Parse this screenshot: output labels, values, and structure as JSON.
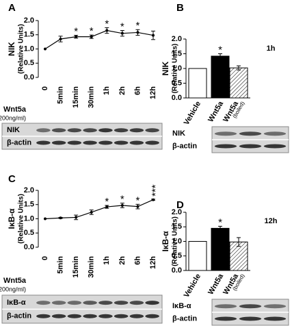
{
  "chart_data": [
    {
      "type": "line",
      "panel": "A",
      "y_label": [
        "NIK",
        "(Relative Units)"
      ],
      "treatment": [
        "Wnt5a",
        "(200ng/ml)"
      ],
      "categories": [
        "0",
        "5min",
        "15min",
        "30min",
        "1h",
        "2h",
        "6h",
        "12h"
      ],
      "values": [
        1.0,
        1.35,
        1.43,
        1.43,
        1.65,
        1.55,
        1.58,
        1.48
      ],
      "errors": [
        0,
        0.1,
        0.05,
        0.06,
        0.1,
        0.1,
        0.1,
        0.15
      ],
      "significance": [
        null,
        null,
        "*",
        "*",
        "*",
        "*",
        "*",
        null
      ],
      "color": "#000000",
      "ylim": [
        0,
        2
      ],
      "yticks": [
        {
          "value": 0,
          "label": "0.0"
        },
        0.5,
        {
          "value": 1,
          "label": "1.0"
        },
        1.5,
        {
          "value": 2,
          "label": "2.0"
        }
      ],
      "blot_labels": [
        "NIK",
        "β-actin"
      ]
    },
    {
      "type": "bar",
      "panel": "B",
      "y_label": [
        "NIK",
        "(Relative Units)"
      ],
      "time": "1h",
      "categories": [
        "Vehicle",
        "Wnt5a",
        "Wnt5a"
      ],
      "category_sublabels": [
        null,
        null,
        "(boiled)"
      ],
      "values": [
        1.0,
        1.42,
        1.02
      ],
      "errors": [
        0,
        0.08,
        0.07
      ],
      "significance": [
        null,
        "*",
        null
      ],
      "colors": [
        "#ffffff",
        "#000000",
        "#ffffff"
      ],
      "hatch": [
        false,
        false,
        true
      ],
      "ylim": [
        0,
        2
      ],
      "yticks": [
        {
          "value": 0,
          "label": "0.0"
        },
        0.5,
        {
          "value": 1,
          "label": "1.0"
        },
        1.5,
        {
          "value": 2,
          "label": "2.0"
        }
      ],
      "blot_labels": [
        "NIK",
        "β-actin"
      ]
    },
    {
      "type": "line",
      "panel": "C",
      "y_label": [
        "IκB-α",
        "(Relative Units)"
      ],
      "treatment": [
        "Wnt5a",
        "(200ng/ml)"
      ],
      "categories": [
        "0",
        "5min",
        "15min",
        "30min",
        "1h",
        "2h",
        "6h",
        "12h"
      ],
      "values": [
        1.0,
        1.03,
        1.05,
        1.23,
        1.42,
        1.47,
        1.43,
        1.67
      ],
      "errors": [
        0,
        0.02,
        0.08,
        0.08,
        0.05,
        0.08,
        0.08,
        0.02
      ],
      "significance": [
        null,
        null,
        null,
        null,
        "*",
        "*",
        "*",
        "***"
      ],
      "color": "#000000",
      "ylim": [
        0,
        2
      ],
      "yticks": [
        {
          "value": 0,
          "label": "0.0"
        },
        0.5,
        {
          "value": 1,
          "label": "1.0"
        },
        1.5,
        {
          "value": 2,
          "label": "2.0"
        }
      ],
      "blot_labels": [
        "IκB-α",
        "β-actin"
      ]
    },
    {
      "type": "bar",
      "panel": "D",
      "y_label": [
        "IκB-α",
        "(Relative Units)"
      ],
      "time": "12h",
      "categories": [
        "Vehicle",
        "Wnt5a",
        "Wnt5a"
      ],
      "category_sublabels": [
        null,
        null,
        "(boiled)"
      ],
      "values": [
        1.0,
        1.45,
        0.98
      ],
      "errors": [
        0,
        0.07,
        0.15
      ],
      "significance": [
        null,
        "*",
        null
      ],
      "colors": [
        "#ffffff",
        "#000000",
        "#ffffff"
      ],
      "hatch": [
        false,
        false,
        true
      ],
      "ylim": [
        0,
        2
      ],
      "yticks": [
        {
          "value": 0,
          "label": "0.0"
        },
        0.5,
        {
          "value": 1,
          "label": "1.0"
        },
        1.5,
        {
          "value": 2,
          "label": "2.0"
        }
      ],
      "blot_labels": [
        "IκB-α",
        "β-actin"
      ]
    }
  ]
}
